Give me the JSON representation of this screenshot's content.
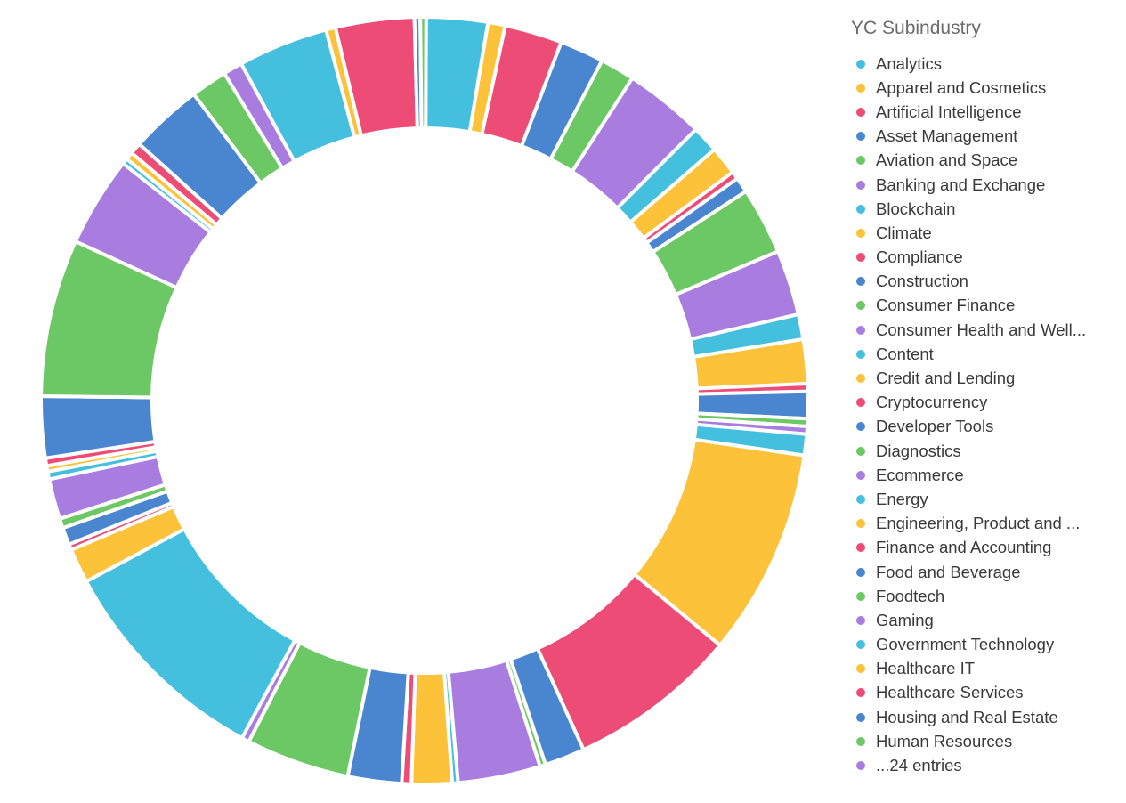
{
  "chart_data": {
    "type": "pie",
    "donut": true,
    "legend_title": "YC Subindustry",
    "legend_placement": "right",
    "palette": [
      "#45bfde",
      "#fbc23a",
      "#ed4c77",
      "#4a86cf",
      "#6cc865",
      "#a97ddf"
    ],
    "legend_items": [
      "Analytics",
      "Apparel and Cosmetics",
      "Artificial Intelligence",
      "Asset Management",
      "Aviation and Space",
      "Banking and Exchange",
      "Blockchain",
      "Climate",
      "Compliance",
      "Construction",
      "Consumer Finance",
      "Consumer Health and Well...",
      "Content",
      "Credit and Lending",
      "Cryptocurrency",
      "Developer Tools",
      "Diagnostics",
      "Ecommerce",
      "Energy",
      "Engineering, Product and ...",
      "Finance and Accounting",
      "Food and Beverage",
      "Foodtech",
      "Gaming",
      "Government Technology",
      "Healthcare IT",
      "Healthcare Services",
      "Housing and Real Estate",
      "Human Resources",
      "...24 entries"
    ],
    "slice_percentages": [
      3.2,
      0.9,
      3.0,
      2.3,
      1.8,
      4.2,
      1.4,
      1.5,
      0.4,
      0.8,
      3.5,
      3.4,
      1.3,
      2.3,
      0.4,
      1.4,
      0.4,
      0.4,
      1.1,
      10.8,
      8.9,
      2.1,
      0.3,
      4.3,
      0.3,
      2.1,
      0.5,
      2.8,
      5.4,
      0.4,
      11.5,
      1.8,
      0.3,
      0.9,
      0.5,
      2.1,
      0.4,
      0.3,
      0.4,
      3.2,
      8.2,
      4.7,
      0.3,
      0.4,
      0.6,
      3.8,
      1.9,
      1.0,
      4.7,
      0.5,
      4.1,
      0.3,
      0.3
    ]
  }
}
